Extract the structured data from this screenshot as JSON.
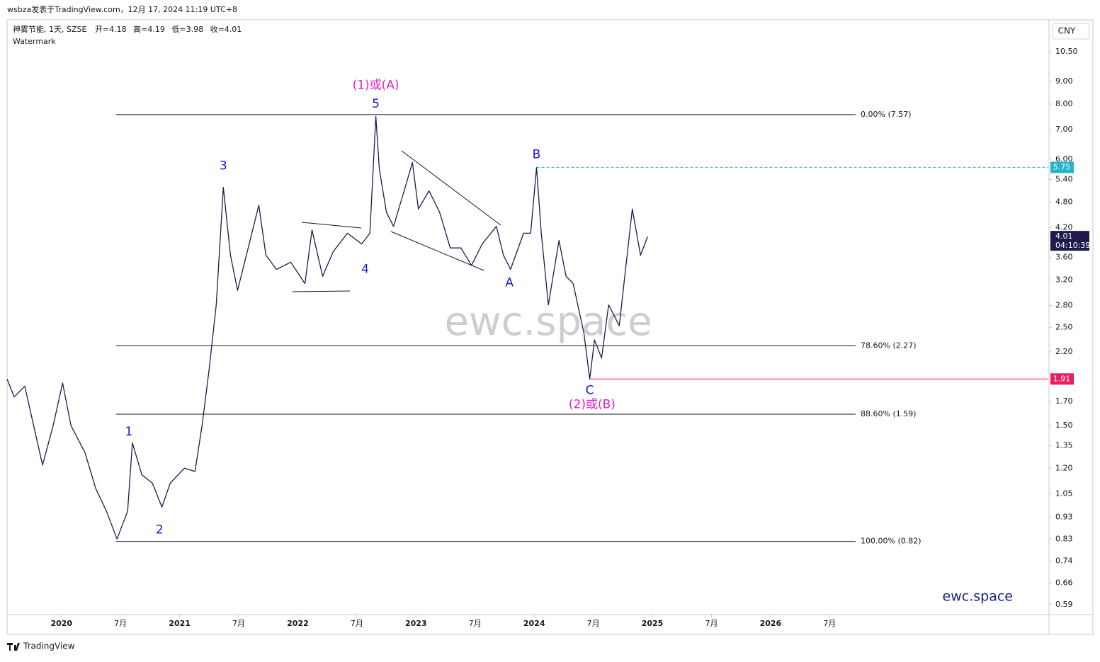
{
  "header": {
    "published": "wsbza发表于TradingView.com，12月 17, 2024 11:19 UTC+8",
    "ohlc": [
      "开=4.18",
      "高=4.19",
      "低=3.98",
      "收=4.01"
    ],
    "watermark_caption": "Watermark",
    "currency": "CNY",
    "brand": "TradingView"
  },
  "chart_data": {
    "type": "line",
    "log_scale": true,
    "grid": false,
    "watermark": "ewc.space",
    "signature": "ewc.space",
    "xlim": [
      2019.54,
      2028.35
    ],
    "ylim": [
      0.56,
      12.4
    ],
    "xticks": [
      {
        "value": 2020,
        "label": "2020"
      },
      {
        "value": 2020.5,
        "label": "7月"
      },
      {
        "value": 2021,
        "label": "2021"
      },
      {
        "value": 2021.5,
        "label": "7月"
      },
      {
        "value": 2022,
        "label": "2022"
      },
      {
        "value": 2022.5,
        "label": "7月"
      },
      {
        "value": 2023,
        "label": "2023"
      },
      {
        "value": 2023.5,
        "label": "7月"
      },
      {
        "value": 2024,
        "label": "2024"
      },
      {
        "value": 2024.5,
        "label": "7月"
      },
      {
        "value": 2025,
        "label": "2025"
      },
      {
        "value": 2025.5,
        "label": "7月"
      },
      {
        "value": 2026,
        "label": "2026"
      },
      {
        "value": 2026.5,
        "label": "7月"
      }
    ],
    "yticks": [
      {
        "value": 10.5,
        "label": "10.50"
      },
      {
        "value": 9,
        "label": "9.00"
      },
      {
        "value": 8,
        "label": "8.00"
      },
      {
        "value": 7,
        "label": "7.00"
      },
      {
        "value": 6,
        "label": "6.00"
      },
      {
        "value": 5.4,
        "label": "5.40"
      },
      {
        "value": 4.8,
        "label": "4.80"
      },
      {
        "value": 4.2,
        "label": "4.20"
      },
      {
        "value": 3.6,
        "label": "3.60"
      },
      {
        "value": 3.2,
        "label": "3.20"
      },
      {
        "value": 2.8,
        "label": "2.80"
      },
      {
        "value": 2.5,
        "label": "2.50"
      },
      {
        "value": 2.2,
        "label": "2.20"
      },
      {
        "value": 1.7,
        "label": "1.70"
      },
      {
        "value": 1.5,
        "label": "1.50"
      },
      {
        "value": 1.35,
        "label": "1.35"
      },
      {
        "value": 1.2,
        "label": "1.20"
      },
      {
        "value": 1.05,
        "label": "1.05"
      },
      {
        "value": 0.93,
        "label": "0.93"
      },
      {
        "value": 0.83,
        "label": "0.83"
      },
      {
        "value": 0.74,
        "label": "0.74"
      },
      {
        "value": 0.66,
        "label": "0.66"
      },
      {
        "value": 0.59,
        "label": "0.59"
      }
    ],
    "series": [
      {
        "name": "神雾节能, 1天, SZSE",
        "color": "#1f1a4d",
        "x": [
          2019.54,
          2019.6,
          2019.69,
          2019.75,
          2019.84,
          2019.93,
          2020.01,
          2020.08,
          2020.2,
          2020.29,
          2020.38,
          2020.47,
          2020.56,
          2020.6,
          2020.68,
          2020.77,
          2020.85,
          2020.92,
          2021.04,
          2021.13,
          2021.19,
          2021.25,
          2021.31,
          2021.37,
          2021.43,
          2021.49,
          2021.58,
          2021.67,
          2021.73,
          2021.82,
          2021.94,
          2022.06,
          2022.12,
          2022.21,
          2022.3,
          2022.42,
          2022.54,
          2022.61,
          2022.66,
          2022.69,
          2022.75,
          2022.81,
          2022.9,
          2022.97,
          2023.02,
          2023.11,
          2023.2,
          2023.29,
          2023.38,
          2023.47,
          2023.56,
          2023.68,
          2023.74,
          2023.8,
          2023.91,
          2023.97,
          2024.02,
          2024.06,
          2024.12,
          2024.21,
          2024.27,
          2024.33,
          2024.42,
          2024.47,
          2024.51,
          2024.57,
          2024.63,
          2024.72,
          2024.78,
          2024.83,
          2024.9,
          2024.96
        ],
        "values": [
          1.91,
          1.74,
          1.84,
          1.56,
          1.22,
          1.5,
          1.87,
          1.5,
          1.3,
          1.08,
          0.96,
          0.83,
          0.96,
          1.37,
          1.16,
          1.11,
          0.98,
          1.11,
          1.2,
          1.18,
          1.5,
          2.01,
          2.81,
          5.18,
          3.64,
          3.03,
          3.78,
          4.72,
          3.64,
          3.38,
          3.51,
          3.14,
          4.15,
          3.26,
          3.71,
          4.08,
          3.86,
          4.08,
          7.5,
          5.69,
          4.55,
          4.23,
          5.09,
          5.9,
          4.63,
          5.09,
          4.55,
          3.78,
          3.78,
          3.45,
          3.86,
          4.23,
          3.64,
          3.38,
          4.08,
          4.08,
          5.75,
          4.08,
          2.81,
          3.93,
          3.26,
          3.14,
          2.43,
          1.91,
          2.34,
          2.13,
          2.81,
          2.52,
          3.51,
          4.63,
          3.64,
          4.01
        ]
      }
    ],
    "fib_levels": {
      "x_start": 2020.46,
      "x_end": 2026.72,
      "color": "#131722",
      "levels": [
        {
          "value": 7.57,
          "label": "0.00% (7.57)"
        },
        {
          "value": 2.27,
          "label": "78.60% (2.27)"
        },
        {
          "value": 1.59,
          "label": "88.60% (1.59)"
        },
        {
          "value": 0.82,
          "label": "100.00% (0.82)"
        }
      ]
    },
    "annotations": [
      {
        "text": "(1)或(A)",
        "x": 2022.66,
        "y": 8.81,
        "color": "#e020c8"
      },
      {
        "text": "5",
        "x": 2022.66,
        "y": 8.0,
        "color": "#1515d4"
      },
      {
        "text": "3",
        "x": 2021.37,
        "y": 5.79,
        "color": "#1515d4"
      },
      {
        "text": "4",
        "x": 2022.57,
        "y": 3.38,
        "color": "#1515d4"
      },
      {
        "text": "1",
        "x": 2020.57,
        "y": 1.45,
        "color": "#1515d4"
      },
      {
        "text": "2",
        "x": 2020.83,
        "y": 0.87,
        "color": "#1515d4"
      },
      {
        "text": "A",
        "x": 2023.79,
        "y": 3.15,
        "color": "#1515d4"
      },
      {
        "text": "B",
        "x": 2024.02,
        "y": 6.14,
        "color": "#1515d4"
      },
      {
        "text": "C",
        "x": 2024.47,
        "y": 1.8,
        "color": "#1515d4"
      },
      {
        "text": "(2)或(B)",
        "x": 2024.49,
        "y": 1.67,
        "color": "#e020c8"
      }
    ],
    "price_markers": [
      {
        "value": 5.75,
        "x_start": 2024.02,
        "color": "#22b5c9",
        "dashed": true
      },
      {
        "value": 1.91,
        "x_start": 2024.47,
        "color": "#e91e63",
        "dashed": false
      }
    ],
    "last_price": {
      "value": 4.01,
      "countdown": "04:10:39",
      "color": "#1f1a4d"
    }
  }
}
